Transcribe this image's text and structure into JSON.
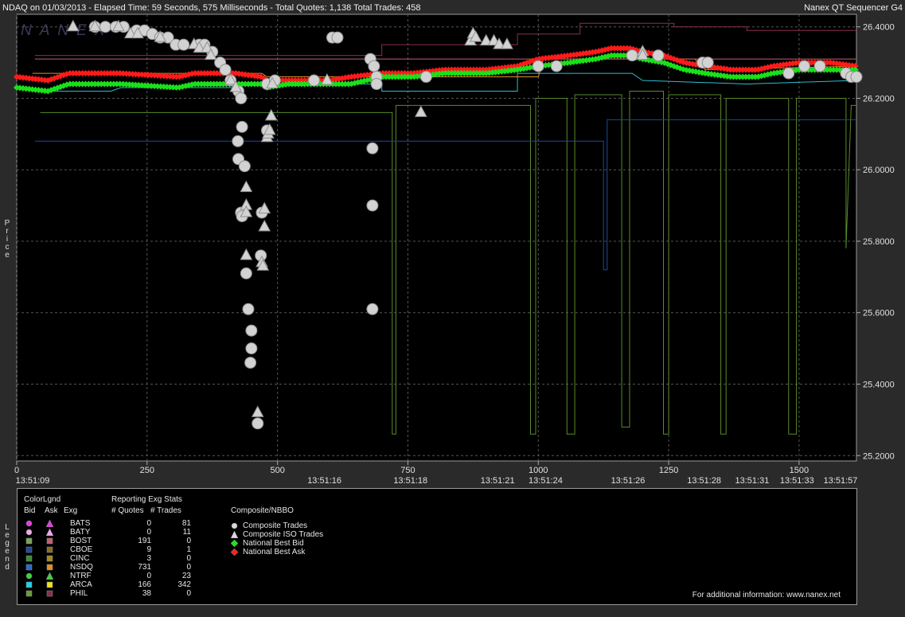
{
  "header": {
    "title": "NDAQ on 01/03/2013  -  Elapsed Time: 59 Seconds, 575 Milliseconds  -  Total Quotes: 1,138  Total Trades: 458",
    "app_name": "Nanex QT Sequencer G4",
    "watermark": "NANEX"
  },
  "side_labels": {
    "price": "Price",
    "legend": "Legend"
  },
  "chart_data": {
    "type": "scatter",
    "x_axis": {
      "range": [
        0,
        1610
      ],
      "ticks": [
        0,
        250,
        500,
        750,
        1000,
        1250,
        1500
      ],
      "time_labels": [
        {
          "x": 0,
          "label": "13:51:09"
        },
        {
          "x": 590,
          "label": "13:51:16"
        },
        {
          "x": 755,
          "label": "13:51:18"
        },
        {
          "x": 922,
          "label": "13:51:21"
        },
        {
          "x": 1014,
          "label": "13:51:24"
        },
        {
          "x": 1172,
          "label": "13:51:26"
        },
        {
          "x": 1318,
          "label": "13:51:28"
        },
        {
          "x": 1410,
          "label": "13:51:31"
        },
        {
          "x": 1496,
          "label": "13:51:33"
        },
        {
          "x": 1580,
          "label": "13:51:57"
        }
      ]
    },
    "y_axis": {
      "range": [
        25.185,
        26.435
      ],
      "ticks": [
        25.2,
        25.4,
        25.6,
        25.8,
        26.0,
        26.2,
        26.4
      ],
      "tick_labels": [
        "25.2000",
        "25.4000",
        "25.6000",
        "25.8000",
        "26.0000",
        "26.2000",
        "26.4000"
      ]
    },
    "grid": true,
    "nbbo": {
      "bid": [
        [
          0,
          26.23
        ],
        [
          60,
          26.22
        ],
        [
          100,
          26.24
        ],
        [
          200,
          26.24
        ],
        [
          310,
          26.23
        ],
        [
          340,
          26.24
        ],
        [
          420,
          26.24
        ],
        [
          470,
          26.24
        ],
        [
          480,
          26.23
        ],
        [
          520,
          26.24
        ],
        [
          600,
          26.24
        ],
        [
          640,
          26.24
        ],
        [
          700,
          26.26
        ],
        [
          760,
          26.26
        ],
        [
          820,
          26.27
        ],
        [
          900,
          26.27
        ],
        [
          960,
          26.28
        ],
        [
          1000,
          26.29
        ],
        [
          1060,
          26.3
        ],
        [
          1110,
          26.31
        ],
        [
          1140,
          26.32
        ],
        [
          1175,
          26.32
        ],
        [
          1200,
          26.31
        ],
        [
          1240,
          26.3
        ],
        [
          1280,
          26.28
        ],
        [
          1320,
          26.27
        ],
        [
          1370,
          26.26
        ],
        [
          1420,
          26.26
        ],
        [
          1450,
          26.27
        ],
        [
          1500,
          26.28
        ],
        [
          1560,
          26.28
        ],
        [
          1610,
          26.28
        ]
      ],
      "ask": [
        [
          0,
          26.26
        ],
        [
          60,
          26.25
        ],
        [
          100,
          26.27
        ],
        [
          200,
          26.27
        ],
        [
          310,
          26.26
        ],
        [
          340,
          26.27
        ],
        [
          420,
          26.27
        ],
        [
          470,
          26.26
        ],
        [
          480,
          26.25
        ],
        [
          520,
          26.25
        ],
        [
          600,
          26.25
        ],
        [
          640,
          26.26
        ],
        [
          700,
          26.27
        ],
        [
          760,
          26.27
        ],
        [
          820,
          26.28
        ],
        [
          900,
          26.28
        ],
        [
          960,
          26.29
        ],
        [
          1000,
          26.31
        ],
        [
          1060,
          26.32
        ],
        [
          1110,
          26.33
        ],
        [
          1140,
          26.34
        ],
        [
          1175,
          26.34
        ],
        [
          1200,
          26.33
        ],
        [
          1240,
          26.32
        ],
        [
          1280,
          26.3
        ],
        [
          1320,
          26.29
        ],
        [
          1370,
          26.28
        ],
        [
          1420,
          26.28
        ],
        [
          1450,
          26.29
        ],
        [
          1500,
          26.3
        ],
        [
          1560,
          26.3
        ],
        [
          1610,
          26.29
        ]
      ]
    },
    "exchange_lines": [
      {
        "name": "CINC",
        "color": "#5a8a2a",
        "points": [
          [
            45,
            26.16
          ],
          [
            720,
            26.16
          ],
          [
            720,
            25.26
          ],
          [
            727,
            25.26
          ],
          [
            727,
            26.18
          ],
          [
            985,
            26.18
          ],
          [
            985,
            25.26
          ],
          [
            995,
            25.26
          ],
          [
            995,
            26.2
          ],
          [
            1055,
            26.2
          ],
          [
            1055,
            25.26
          ],
          [
            1070,
            25.26
          ],
          [
            1070,
            26.21
          ],
          [
            1160,
            26.21
          ],
          [
            1160,
            25.28
          ],
          [
            1175,
            25.28
          ],
          [
            1175,
            26.22
          ],
          [
            1240,
            26.22
          ],
          [
            1240,
            25.26
          ],
          [
            1250,
            25.26
          ],
          [
            1250,
            26.21
          ],
          [
            1350,
            26.21
          ],
          [
            1350,
            25.26
          ],
          [
            1360,
            25.26
          ],
          [
            1360,
            26.2
          ],
          [
            1480,
            26.2
          ],
          [
            1480,
            25.26
          ],
          [
            1495,
            25.26
          ],
          [
            1495,
            26.2
          ],
          [
            1590,
            26.2
          ],
          [
            1590,
            25.78
          ],
          [
            1600,
            26.18
          ],
          [
            1610,
            26.18
          ]
        ]
      },
      {
        "name": "CBOE",
        "color": "#1a4aa0",
        "points": [
          [
            35,
            26.08
          ],
          [
            1125,
            26.08
          ],
          [
            1125,
            25.72
          ],
          [
            1132,
            25.72
          ],
          [
            1132,
            26.14
          ],
          [
            1610,
            26.14
          ]
        ]
      },
      {
        "name": "ARCA",
        "color": "#2fbcd0",
        "points": [
          [
            30,
            26.22
          ],
          [
            180,
            26.22
          ],
          [
            200,
            26.23
          ],
          [
            420,
            26.23
          ],
          [
            440,
            26.24
          ],
          [
            700,
            26.24
          ],
          [
            700,
            26.22
          ],
          [
            960,
            26.22
          ],
          [
            960,
            26.27
          ],
          [
            1180,
            26.27
          ],
          [
            1200,
            26.25
          ],
          [
            1400,
            26.24
          ],
          [
            1610,
            26.25
          ]
        ]
      },
      {
        "name": "NSDQ",
        "color": "#d89020",
        "points": [
          [
            30,
            26.27
          ],
          [
            470,
            26.27
          ],
          [
            480,
            26.26
          ],
          [
            1000,
            26.26
          ],
          [
            1010,
            26.31
          ],
          [
            1300,
            26.31
          ],
          [
            1320,
            26.28
          ],
          [
            1610,
            26.29
          ]
        ]
      },
      {
        "name": "PHIL",
        "color": "#8a3050",
        "points": [
          [
            35,
            26.32
          ],
          [
            700,
            26.32
          ],
          [
            700,
            26.35
          ],
          [
            960,
            26.35
          ],
          [
            960,
            26.38
          ],
          [
            1080,
            26.38
          ],
          [
            1080,
            26.41
          ],
          [
            1260,
            26.41
          ],
          [
            1260,
            26.4
          ],
          [
            1400,
            26.4
          ],
          [
            1400,
            26.39
          ],
          [
            1610,
            26.39
          ]
        ]
      },
      {
        "name": "BOST",
        "color": "#c06070",
        "points": [
          [
            35,
            26.31
          ],
          [
            1610,
            26.31
          ]
        ]
      }
    ],
    "composite_trades": [
      [
        150,
        26.4
      ],
      [
        170,
        26.4
      ],
      [
        190,
        26.4
      ],
      [
        205,
        26.4
      ],
      [
        230,
        26.39
      ],
      [
        245,
        26.39
      ],
      [
        260,
        26.38
      ],
      [
        275,
        26.37
      ],
      [
        290,
        26.37
      ],
      [
        305,
        26.35
      ],
      [
        320,
        26.35
      ],
      [
        350,
        26.35
      ],
      [
        360,
        26.35
      ],
      [
        375,
        26.33
      ],
      [
        390,
        26.3
      ],
      [
        400,
        26.28
      ],
      [
        410,
        26.25
      ],
      [
        425,
        26.22
      ],
      [
        430,
        26.2
      ],
      [
        432,
        26.12
      ],
      [
        424,
        26.08
      ],
      [
        425,
        26.03
      ],
      [
        437,
        26.01
      ],
      [
        430,
        25.88
      ],
      [
        432,
        25.87
      ],
      [
        440,
        25.71
      ],
      [
        444,
        25.61
      ],
      [
        450,
        25.55
      ],
      [
        450,
        25.5
      ],
      [
        448,
        25.46
      ],
      [
        462,
        25.29
      ],
      [
        468,
        25.76
      ],
      [
        470,
        25.88
      ],
      [
        480,
        26.11
      ],
      [
        480,
        26.24
      ],
      [
        495,
        26.25
      ],
      [
        570,
        26.25
      ],
      [
        605,
        26.37
      ],
      [
        615,
        26.37
      ],
      [
        678,
        26.31
      ],
      [
        685,
        26.29
      ],
      [
        690,
        26.26
      ],
      [
        690,
        26.24
      ],
      [
        682,
        26.06
      ],
      [
        682,
        25.9
      ],
      [
        682,
        25.61
      ],
      [
        785,
        26.26
      ],
      [
        1000,
        26.29
      ],
      [
        1035,
        26.29
      ],
      [
        1180,
        26.32
      ],
      [
        1230,
        26.32
      ],
      [
        1315,
        26.3
      ],
      [
        1325,
        26.3
      ],
      [
        1480,
        26.27
      ],
      [
        1510,
        26.29
      ],
      [
        1540,
        26.29
      ],
      [
        1590,
        26.27
      ],
      [
        1600,
        26.26
      ],
      [
        1610,
        26.26
      ]
    ],
    "iso_trades": [
      [
        108,
        26.4
      ],
      [
        150,
        26.4
      ],
      [
        195,
        26.4
      ],
      [
        218,
        26.38
      ],
      [
        232,
        26.38
      ],
      [
        275,
        26.37
      ],
      [
        340,
        26.35
      ],
      [
        350,
        26.34
      ],
      [
        365,
        26.34
      ],
      [
        372,
        26.32
      ],
      [
        410,
        26.25
      ],
      [
        420,
        26.23
      ],
      [
        440,
        25.95
      ],
      [
        440,
        25.9
      ],
      [
        440,
        25.88
      ],
      [
        440,
        25.76
      ],
      [
        462,
        25.32
      ],
      [
        470,
        25.74
      ],
      [
        472,
        25.73
      ],
      [
        475,
        25.84
      ],
      [
        475,
        25.89
      ],
      [
        480,
        26.09
      ],
      [
        482,
        26.1
      ],
      [
        485,
        26.11
      ],
      [
        488,
        26.15
      ],
      [
        490,
        26.24
      ],
      [
        595,
        26.25
      ],
      [
        775,
        26.16
      ],
      [
        870,
        26.36
      ],
      [
        875,
        26.38
      ],
      [
        880,
        26.37
      ],
      [
        900,
        26.36
      ],
      [
        915,
        26.36
      ],
      [
        925,
        26.35
      ],
      [
        940,
        26.35
      ],
      [
        1200,
        26.33
      ],
      [
        1200,
        26.32
      ]
    ]
  },
  "legend": {
    "colorlgnd_label": "ColorLgnd",
    "bid_label": "Bid",
    "ask_label": "Ask",
    "exg_label": "Exg",
    "stats_title": "Reporting Exg Stats",
    "quotes_label": "# Quotes",
    "trades_label": "# Trades",
    "composite_title": "Composite/NBBO",
    "rows": [
      {
        "exg": "BATS",
        "quotes": "0",
        "trades": "81",
        "bid_color": "#e040e0",
        "ask_color": "#e040e0",
        "bid_shape": "circle",
        "ask_shape": "triangle"
      },
      {
        "exg": "BATY",
        "quotes": "0",
        "trades": "11",
        "bid_color": "#f0a8e8",
        "ask_color": "#f0a8e8",
        "bid_shape": "circle",
        "ask_shape": "triangle"
      },
      {
        "exg": "BOST",
        "quotes": "191",
        "trades": "0",
        "bid_color": "#7aa25a",
        "ask_color": "#c06070",
        "bid_shape": "square",
        "ask_shape": "square"
      },
      {
        "exg": "CBOE",
        "quotes": "9",
        "trades": "1",
        "bid_color": "#1a4aa0",
        "ask_color": "#8a6a2a",
        "bid_shape": "square",
        "ask_shape": "square"
      },
      {
        "exg": "CINC",
        "quotes": "3",
        "trades": "0",
        "bid_color": "#3a8a3a",
        "ask_color": "#a08a20",
        "bid_shape": "square",
        "ask_shape": "square"
      },
      {
        "exg": "NSDQ",
        "quotes": "731",
        "trades": "0",
        "bid_color": "#2a6ad0",
        "ask_color": "#e09020",
        "bid_shape": "square",
        "ask_shape": "square"
      },
      {
        "exg": "NTRF",
        "quotes": "0",
        "trades": "23",
        "bid_color": "#40d040",
        "ask_color": "#40d040",
        "bid_shape": "circle",
        "ask_shape": "triangle"
      },
      {
        "exg": "ARCA",
        "quotes": "166",
        "trades": "342",
        "bid_color": "#20d0e8",
        "ask_color": "#f0e020",
        "bid_shape": "square",
        "ask_shape": "square"
      },
      {
        "exg": "PHIL",
        "quotes": "38",
        "trades": "0",
        "bid_color": "#6a9a3a",
        "ask_color": "#8a3050",
        "bid_shape": "square",
        "ask_shape": "square"
      }
    ],
    "composite_items": [
      {
        "label": "Composite Trades",
        "shape": "circle",
        "color": "#d8d8d8"
      },
      {
        "label": "Composite ISO Trades",
        "shape": "triangle",
        "color": "#d8d8d8"
      },
      {
        "label": "National Best Bid",
        "shape": "diamond",
        "color": "#20e020"
      },
      {
        "label": "National Best Ask",
        "shape": "diamond",
        "color": "#ff2020"
      }
    ],
    "footer": "For additional information: www.nanex.net"
  }
}
